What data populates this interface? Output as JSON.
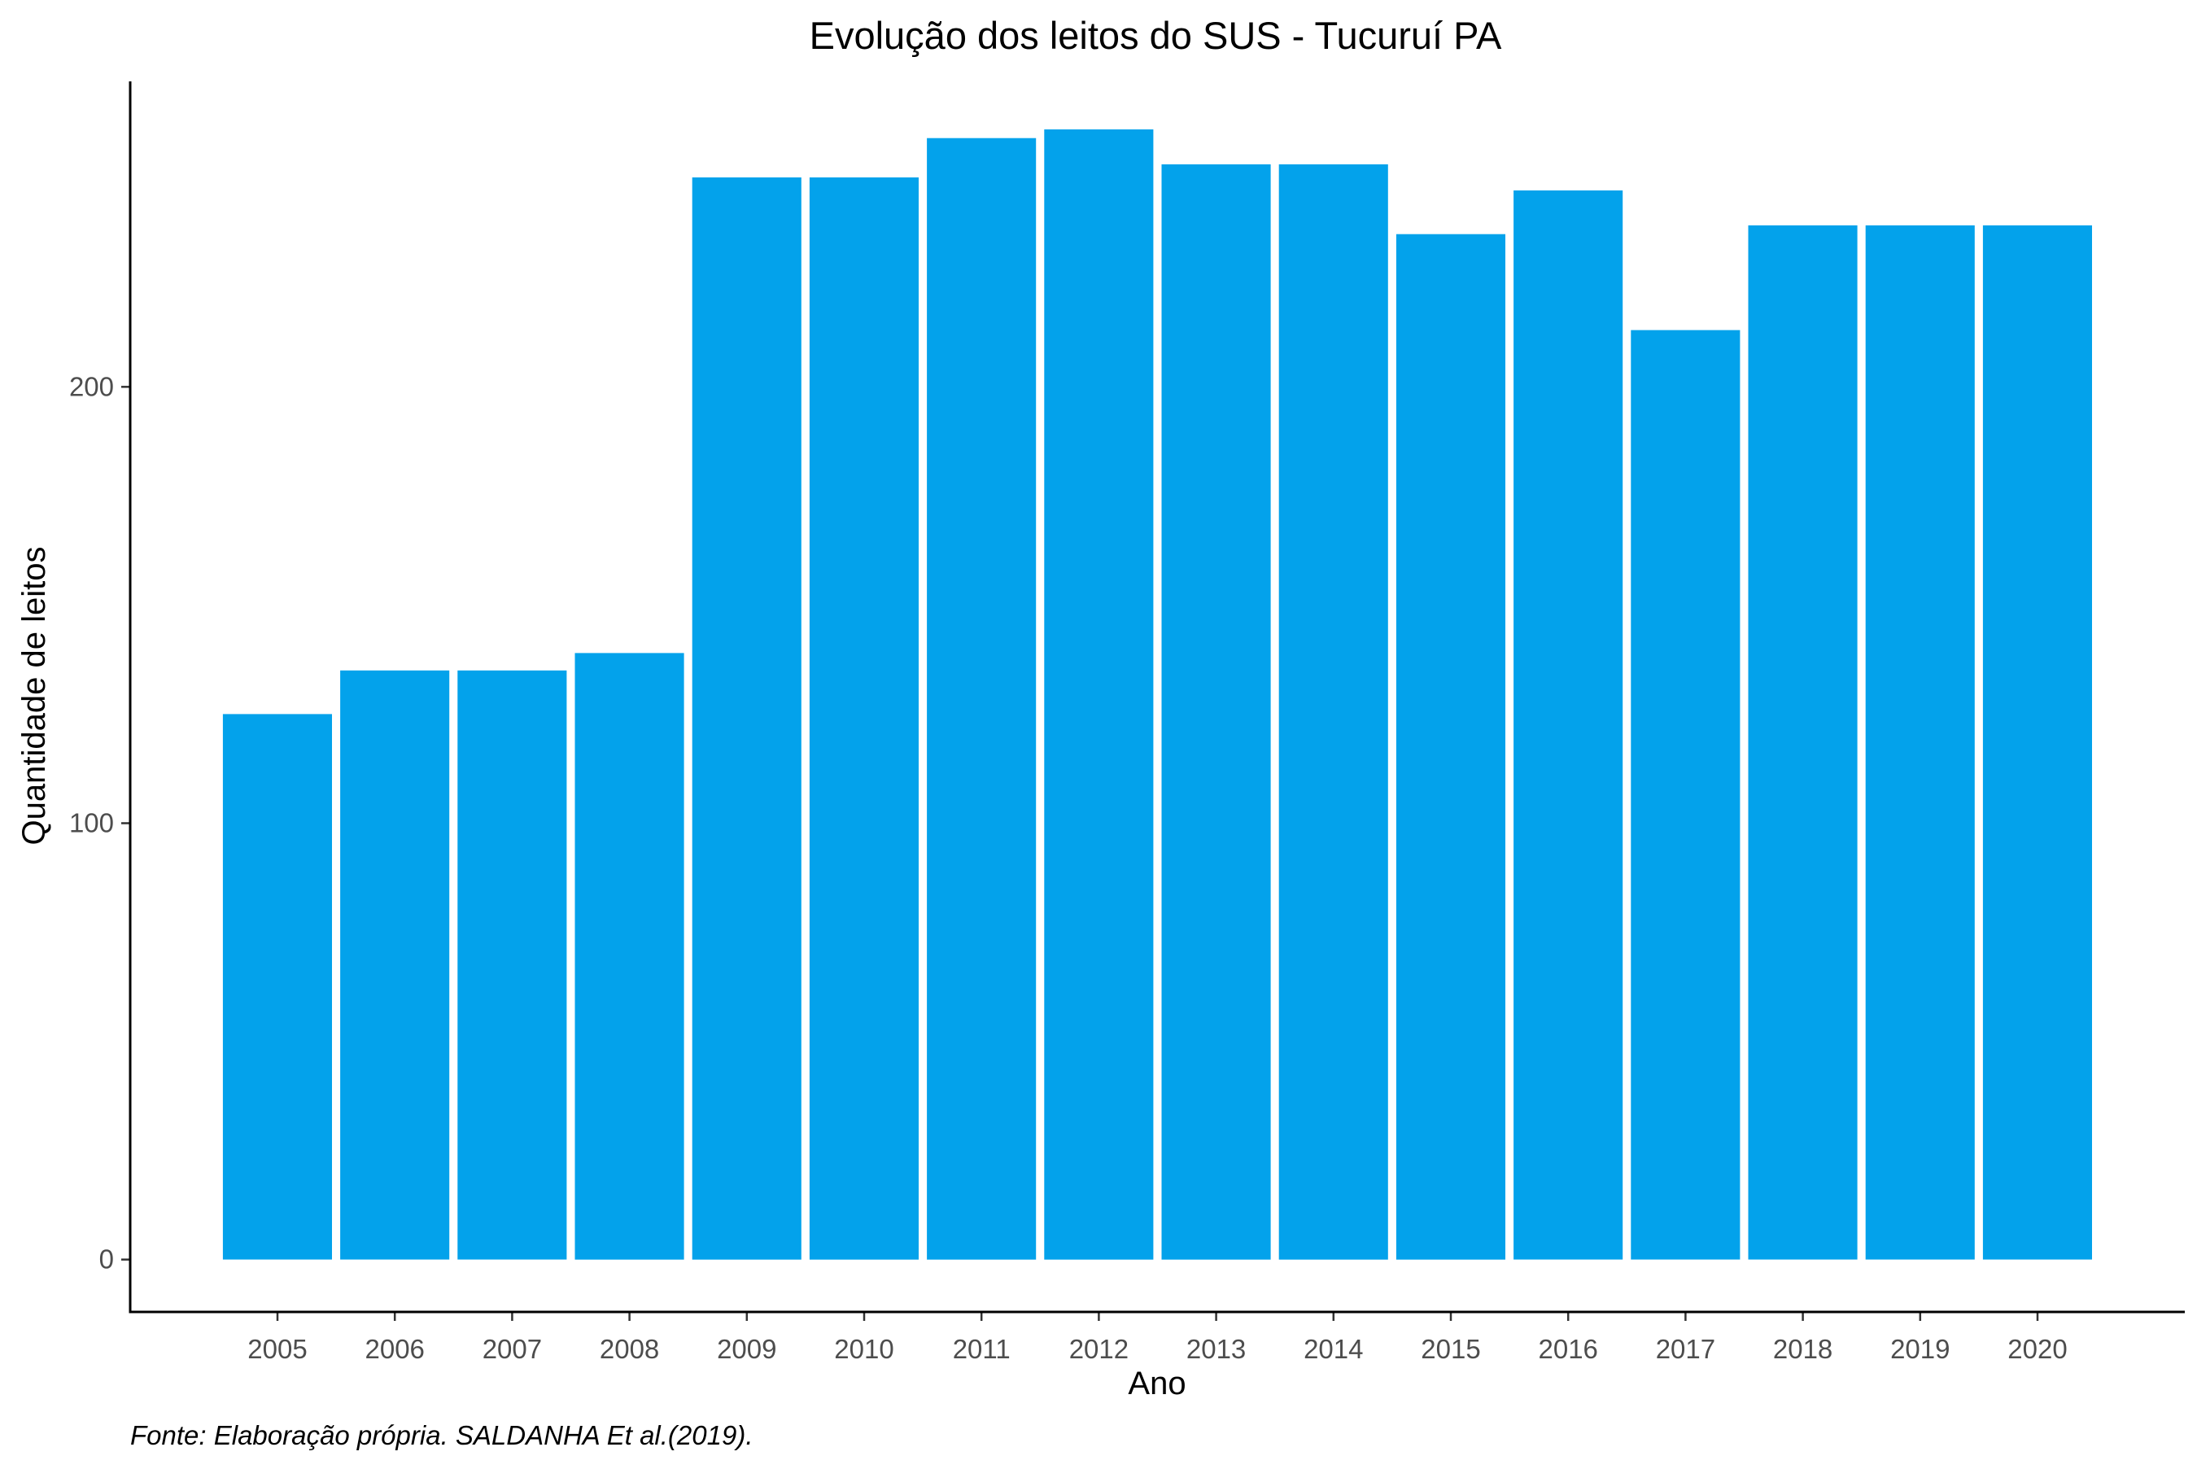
{
  "chart_data": {
    "type": "bar",
    "title": "Evolução dos leitos do SUS -  Tucuruí PA",
    "xlabel": "Ano",
    "ylabel": "Quantidade de leitos",
    "caption": "Fonte: Elaboração própria. SALDANHA Et al.(2019).",
    "categories": [
      "2005",
      "2006",
      "2007",
      "2008",
      "2009",
      "2010",
      "2011",
      "2012",
      "2013",
      "2014",
      "2015",
      "2016",
      "2017",
      "2018",
      "2019",
      "2020"
    ],
    "values": [
      125,
      135,
      135,
      139,
      248,
      248,
      257,
      259,
      251,
      251,
      235,
      245,
      213,
      237,
      237,
      237
    ],
    "yticks": [
      0,
      100,
      200
    ],
    "ylim": [
      -12,
      270
    ],
    "grid": false,
    "legend": "none",
    "bar_color": "#03A2EB"
  }
}
